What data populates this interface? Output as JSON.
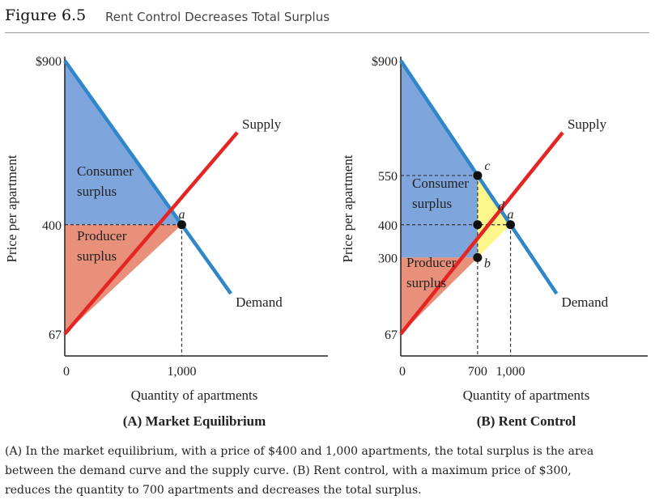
{
  "figure": {
    "number": "Figure 6.5",
    "title": "Rent Control Decreases Total Surplus"
  },
  "chart_data": [
    {
      "type": "line",
      "subtitle": "(A) Market Equilibrium",
      "xlabel": "Quantity of apartments",
      "ylabel": "Price per apartment",
      "xlim": [
        0,
        2250
      ],
      "ylim": [
        0,
        900
      ],
      "y_ticks": [
        {
          "value": 900,
          "label": "$900"
        },
        {
          "value": 400,
          "label": "400"
        },
        {
          "value": 67,
          "label": "67"
        }
      ],
      "x_ticks": [
        {
          "value": 0,
          "label": "0"
        },
        {
          "value": 1000,
          "label": "1,000"
        }
      ],
      "series": [
        {
          "name": "Demand",
          "color": "#2f86c8",
          "x": [
            0,
            1420
          ],
          "y": [
            900,
            190
          ]
        },
        {
          "name": "Supply",
          "color": "#e52523",
          "x": [
            0,
            1475
          ],
          "y": [
            67,
            681
          ]
        }
      ],
      "regions": [
        {
          "label_lines": [
            "Consumer",
            "surplus"
          ],
          "color": "#7fa6dc",
          "points": [
            [
              0,
              900
            ],
            [
              1000,
              400
            ],
            [
              0,
              400
            ]
          ]
        },
        {
          "label_lines": [
            "Producer",
            "surplus"
          ],
          "color": "#e8907a",
          "points": [
            [
              0,
              400
            ],
            [
              1000,
              400
            ],
            [
              0,
              67
            ]
          ]
        }
      ],
      "points": [
        {
          "label": "a",
          "x": 1000,
          "y": 400
        }
      ],
      "guides": [
        {
          "x": [
            0,
            1000
          ],
          "y": [
            400,
            400
          ]
        },
        {
          "x": [
            1000,
            1000
          ],
          "y": [
            400,
            0
          ]
        }
      ]
    },
    {
      "type": "line",
      "subtitle": "(B) Rent Control",
      "xlabel": "Quantity of apartments",
      "ylabel": "Price per apartment",
      "xlim": [
        0,
        2250
      ],
      "ylim": [
        0,
        900
      ],
      "y_ticks": [
        {
          "value": 900,
          "label": "$900"
        },
        {
          "value": 550,
          "label": "550"
        },
        {
          "value": 400,
          "label": "400"
        },
        {
          "value": 300,
          "label": "300"
        },
        {
          "value": 67,
          "label": "67"
        }
      ],
      "x_ticks": [
        {
          "value": 0,
          "label": "0"
        },
        {
          "value": 700,
          "label": "700"
        },
        {
          "value": 1000,
          "label": "1,000"
        }
      ],
      "series": [
        {
          "name": "Demand",
          "color": "#2f86c8",
          "x": [
            0,
            1420
          ],
          "y": [
            900,
            190
          ]
        },
        {
          "name": "Supply",
          "color": "#e52523",
          "x": [
            0,
            1475
          ],
          "y": [
            67,
            681
          ]
        }
      ],
      "regions": [
        {
          "label_lines": [
            "Consumer",
            "surplus"
          ],
          "color": "#7fa6dc",
          "points": [
            [
              0,
              900
            ],
            [
              700,
              550
            ],
            [
              700,
              300
            ],
            [
              0,
              300
            ]
          ]
        },
        {
          "label_lines": [
            "Producer",
            "surplus"
          ],
          "color": "#e8907a",
          "points": [
            [
              0,
              300
            ],
            [
              700,
              300
            ],
            [
              0,
              67
            ]
          ]
        },
        {
          "label_lines": [
            "d"
          ],
          "color": "#fdf68a",
          "points": [
            [
              700,
              550
            ],
            [
              1000,
              400
            ],
            [
              700,
              300
            ]
          ]
        }
      ],
      "points": [
        {
          "label": "c",
          "x": 700,
          "y": 550
        },
        {
          "label": "",
          "x": 700,
          "y": 400
        },
        {
          "label": "b",
          "x": 700,
          "y": 300
        },
        {
          "label": "a",
          "x": 1000,
          "y": 400
        }
      ],
      "guides": [
        {
          "x": [
            0,
            700
          ],
          "y": [
            550,
            550
          ]
        },
        {
          "x": [
            0,
            1000
          ],
          "y": [
            400,
            400
          ]
        },
        {
          "x": [
            700,
            700
          ],
          "y": [
            550,
            0
          ]
        },
        {
          "x": [
            1000,
            1000
          ],
          "y": [
            400,
            0
          ]
        }
      ]
    }
  ],
  "caption": {
    "line1": "(A) In the market equilibrium, with a price of $400 and 1,000 apartments, the total surplus is the area",
    "line2": "between the demand curve and the supply curve. (B) Rent control, with a maximum price of $300,",
    "line3": "reduces the quantity to 700 apartments and decreases the total surplus."
  }
}
